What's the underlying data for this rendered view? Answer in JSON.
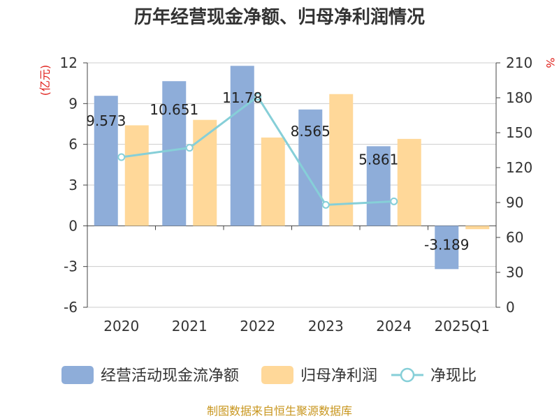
{
  "chart_data": {
    "type": "bar",
    "title": "历年经营现金净额、归母净利润情况",
    "categories": [
      "2020",
      "2021",
      "2022",
      "2023",
      "2024",
      "2025Q1"
    ],
    "series": [
      {
        "name": "经营活动现金流净额",
        "kind": "bar",
        "axis": "left",
        "color": "#8eadd9",
        "values": [
          9.573,
          10.651,
          11.78,
          8.565,
          5.861,
          -3.189
        ],
        "labels": [
          "9.573",
          "10.651",
          "11.78",
          "8.565",
          "5.861",
          "-3.189"
        ]
      },
      {
        "name": "归母净利润",
        "kind": "bar",
        "axis": "left",
        "color": "#ffd899",
        "values": [
          7.4,
          7.8,
          6.5,
          9.7,
          6.4,
          -0.25
        ]
      },
      {
        "name": "净现比",
        "kind": "line",
        "axis": "right",
        "color": "#86cfd8",
        "values": [
          129,
          137,
          181,
          88,
          91,
          null
        ]
      }
    ],
    "left_axis": {
      "unit": "(亿元)",
      "ylim": [
        -6,
        12
      ],
      "ticks": [
        -6,
        -3,
        0,
        3,
        6,
        9,
        12
      ]
    },
    "right_axis": {
      "unit": "%",
      "ylim": [
        0,
        210
      ],
      "ticks": [
        0,
        30,
        60,
        90,
        120,
        150,
        180,
        210
      ]
    },
    "grid": true,
    "legend_position": "bottom"
  },
  "source_text": "制图数据来自恒生聚源数据库"
}
